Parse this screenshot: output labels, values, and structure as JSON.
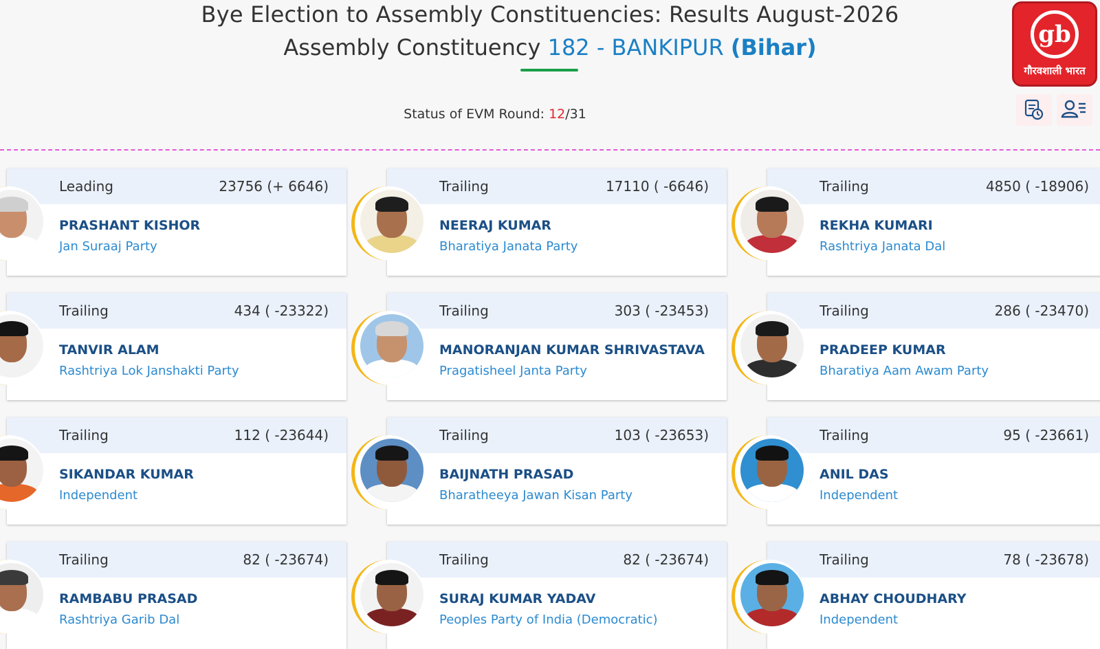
{
  "header": {
    "title_line1": "Bye Election to Assembly Constituencies: Results August-2026",
    "title_prefix": "Assembly Constituency",
    "ac_number_name": "182 - BANKIPUR",
    "state": "(Bihar)"
  },
  "status": {
    "label": "Status of EVM Round:",
    "current": "12",
    "total": "/31"
  },
  "logo": {
    "mark": "gb",
    "text": "गौरवशाली भारत"
  },
  "toolbar": {
    "icons": [
      "round-details-icon",
      "candidate-list-icon"
    ]
  },
  "candidates": [
    {
      "status": "Leading",
      "votes": "23756 (+ 6646)",
      "name": "PRASHANT KISHOR",
      "party": "Jan Suraaj Party",
      "bg": "#f2f2f2",
      "skin": "#c98f6d",
      "hair": "#cfcfcf",
      "cloth": "#ffffff"
    },
    {
      "status": "Trailing",
      "votes": "17110 ( -6646)",
      "name": "NEERAJ KUMAR",
      "party": "Bharatiya Janata Party",
      "bg": "#f4f0e6",
      "skin": "#a8704d",
      "hair": "#1e1e1e",
      "cloth": "#e9d48a"
    },
    {
      "status": "Trailing",
      "votes": "4850 ( -18906)",
      "name": "REKHA KUMARI",
      "party": "Rashtriya Janata Dal",
      "bg": "#f0ece8",
      "skin": "#b67a58",
      "hair": "#1a1a1a",
      "cloth": "#c12f3b"
    },
    {
      "status": "Trailing",
      "votes": "434 ( -23322)",
      "name": "TANVIR ALAM",
      "party": "Rashtriya Lok Janshakti Party",
      "bg": "#f3f3f3",
      "skin": "#a56a47",
      "hair": "#141414",
      "cloth": "#f2f2f2"
    },
    {
      "status": "Trailing",
      "votes": "303 ( -23453)",
      "name": "MANORANJAN KUMAR SHRIVASTAVA",
      "party": "Pragatisheel Janta Party",
      "bg": "#9fc6e8",
      "skin": "#c6926e",
      "hair": "#d7d7d7",
      "cloth": "#ffffff"
    },
    {
      "status": "Trailing",
      "votes": "286 ( -23470)",
      "name": "PRADEEP KUMAR",
      "party": "Bharatiya Aam Awam Party",
      "bg": "#f1f1f1",
      "skin": "#a36a48",
      "hair": "#1a1a1a",
      "cloth": "#2d2d2d"
    },
    {
      "status": "Trailing",
      "votes": "112 ( -23644)",
      "name": "SIKANDAR KUMAR",
      "party": "Independent",
      "bg": "#f3f3f3",
      "skin": "#9c6042",
      "hair": "#151515",
      "cloth": "#e6672a"
    },
    {
      "status": "Trailing",
      "votes": "103 ( -23653)",
      "name": "BAIJNATH PRASAD",
      "party": "Bharatheeya Jawan Kisan Party",
      "bg": "#5d8fc4",
      "skin": "#8f5a3c",
      "hair": "#161616",
      "cloth": "#f4f4f4"
    },
    {
      "status": "Trailing",
      "votes": "95 ( -23661)",
      "name": "ANIL DAS",
      "party": "Independent",
      "bg": "#2f8fd0",
      "skin": "#9a6443",
      "hair": "#121212",
      "cloth": "#ffffff"
    },
    {
      "status": "Trailing",
      "votes": "82 ( -23674)",
      "name": "RAMBABU PRASAD",
      "party": "Rashtriya Garib Dal",
      "bg": "#eeeeee",
      "skin": "#a96f4e",
      "hair": "#3a3a3a",
      "cloth": "#ffffff"
    },
    {
      "status": "Trailing",
      "votes": "82 ( -23674)",
      "name": "SURAJ KUMAR YADAV",
      "party": "Peoples Party of India (Democratic)",
      "bg": "#f2f2f2",
      "skin": "#9a6244",
      "hair": "#151515",
      "cloth": "#7a2222"
    },
    {
      "status": "Trailing",
      "votes": "78 ( -23678)",
      "name": "ABHAY CHOUDHARY",
      "party": "Independent",
      "bg": "#5ab0e4",
      "skin": "#9a6546",
      "hair": "#141414",
      "cloth": "#b32a2a"
    }
  ]
}
